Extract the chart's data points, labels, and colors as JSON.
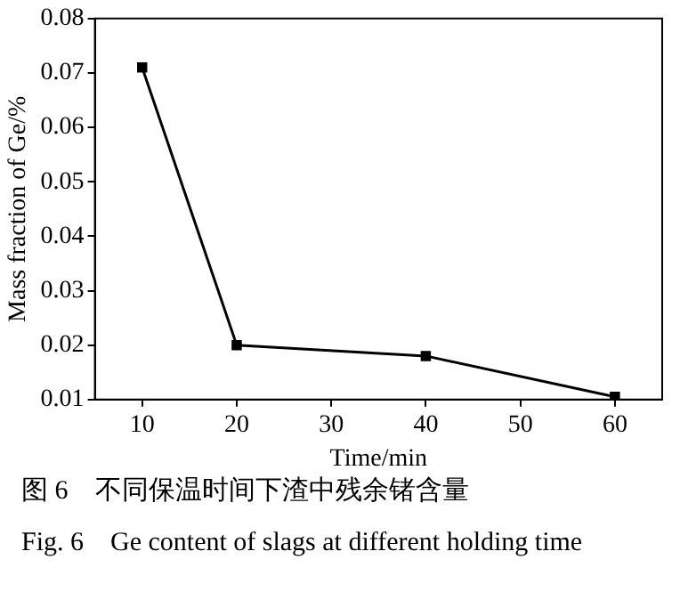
{
  "chart_data": {
    "type": "line",
    "xlabel": "Time/min",
    "ylabel": "Mass fraction of Ge/%",
    "x": [
      10,
      20,
      40,
      60
    ],
    "series": [
      {
        "color": "#000000",
        "values": [
          0.071,
          0.02,
          0.018,
          0.0105
        ]
      }
    ],
    "xlim": [
      5,
      65
    ],
    "xticks": [
      10,
      20,
      30,
      40,
      50,
      60
    ],
    "ylim": [
      0.01,
      0.08
    ],
    "yticks": [
      {
        "value": 0.01,
        "label": "0.01"
      },
      {
        "value": 0.02,
        "label": "0.02"
      },
      {
        "value": 0.03,
        "label": "0.03"
      },
      {
        "value": 0.04,
        "label": "0.04"
      },
      {
        "value": 0.05,
        "label": "0.05"
      },
      {
        "value": 0.06,
        "label": "0.06"
      },
      {
        "value": 0.07,
        "label": "0.07"
      },
      {
        "value": 0.08,
        "label": "0.08"
      }
    ],
    "marker": "square",
    "line_style": "solid",
    "grid": false,
    "legend": false,
    "annotations": [
      "图 6　不同保温时间下渣中残余锗含量",
      "Fig. 6　Ge content of slags at different holding time"
    ]
  }
}
